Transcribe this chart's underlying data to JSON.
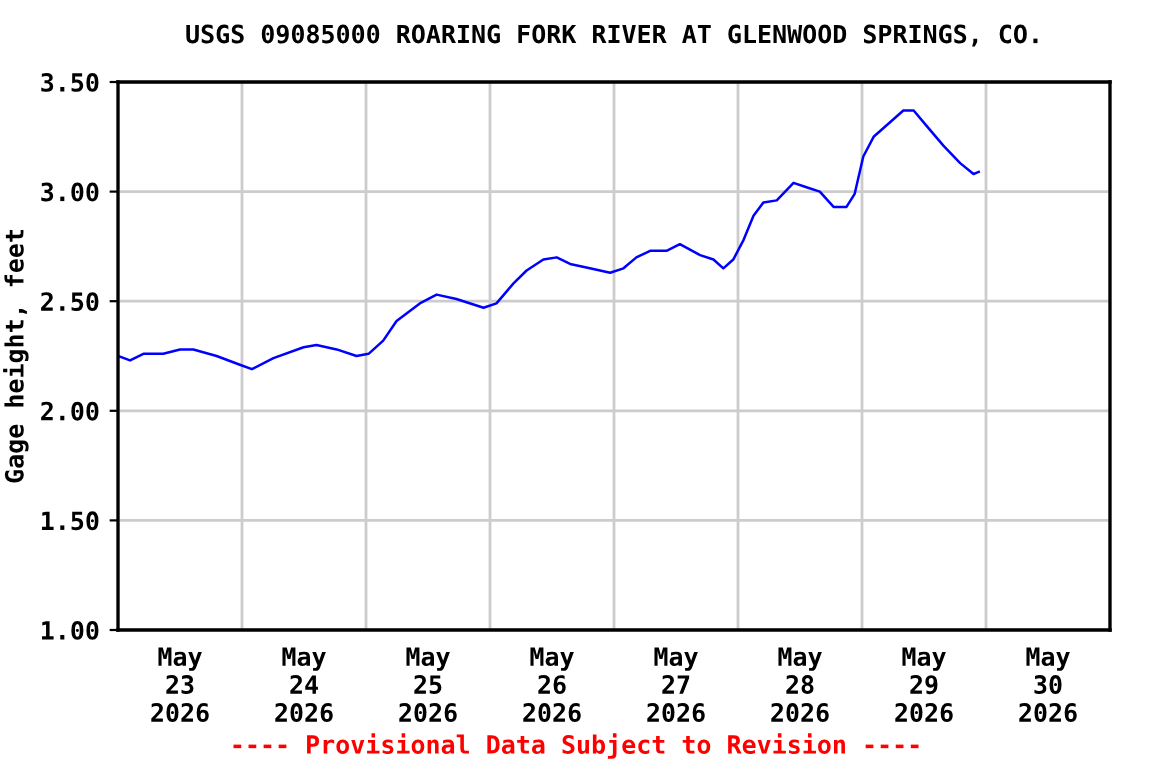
{
  "chart_data": {
    "type": "line",
    "title": "USGS 09085000 ROARING FORK RIVER AT GLENWOOD SPRINGS, CO.",
    "ylabel": "Gage height, feet",
    "annotations": [
      "---- Provisional Data Subject to Revision ----"
    ],
    "series": [
      {
        "color": "#0000ff",
        "x": [
          "2026-05-23T00:00",
          "2026-05-23T02:20",
          "2026-05-23T04:55",
          "2026-05-23T08:45",
          "2026-05-23T12:00",
          "2026-05-23T14:35",
          "2026-05-23T19:05",
          "2026-05-23T23:35",
          "2026-05-24T01:55",
          "2026-05-24T06:05",
          "2026-05-24T11:55",
          "2026-05-24T14:25",
          "2026-05-24T18:20",
          "2026-05-24T22:10",
          "2026-05-25T00:30",
          "2026-05-25T03:20",
          "2026-05-25T05:55",
          "2026-05-25T10:25",
          "2026-05-25T13:40",
          "2026-05-25T17:30",
          "2026-05-25T22:45",
          "2026-05-26T01:15",
          "2026-05-26T04:30",
          "2026-05-26T07:05",
          "2026-05-26T10:20",
          "2026-05-26T12:55",
          "2026-05-26T15:30",
          "2026-05-26T19:20",
          "2026-05-26T23:15",
          "2026-05-27T01:50",
          "2026-05-27T04:20",
          "2026-05-27T07:00",
          "2026-05-27T10:10",
          "2026-05-27T12:45",
          "2026-05-27T16:40",
          "2026-05-27T19:15",
          "2026-05-27T21:10",
          "2026-05-27T23:05",
          "2026-05-28T01:05",
          "2026-05-28T03:00",
          "2026-05-28T04:55",
          "2026-05-28T07:30",
          "2026-05-28T10:45",
          "2026-05-28T13:15",
          "2026-05-28T15:50",
          "2026-05-28T18:30",
          "2026-05-28T21:00",
          "2026-05-28T22:35",
          "2026-05-29T00:15",
          "2026-05-29T02:15",
          "2026-05-29T06:05",
          "2026-05-29T08:00",
          "2026-05-29T10:00",
          "2026-05-29T12:30",
          "2026-05-29T15:45",
          "2026-05-29T19:00",
          "2026-05-29T21:35",
          "2026-05-29T22:35"
        ],
        "values": [
          2.25,
          2.23,
          2.26,
          2.26,
          2.28,
          2.28,
          2.25,
          2.21,
          2.19,
          2.24,
          2.29,
          2.3,
          2.28,
          2.25,
          2.26,
          2.32,
          2.41,
          2.49,
          2.53,
          2.51,
          2.47,
          2.49,
          2.58,
          2.64,
          2.69,
          2.7,
          2.67,
          2.65,
          2.63,
          2.65,
          2.7,
          2.73,
          2.73,
          2.76,
          2.71,
          2.69,
          2.65,
          2.69,
          2.78,
          2.89,
          2.95,
          2.96,
          3.04,
          3.02,
          3.0,
          2.93,
          2.93,
          2.99,
          3.16,
          3.25,
          3.33,
          3.37,
          3.37,
          3.3,
          3.21,
          3.13,
          3.08,
          3.09
        ]
      }
    ],
    "xlim": [
      "2026-05-23T00:00",
      "2026-05-31T00:00"
    ],
    "xticks": [
      {
        "value": "2026-05-23T00:00",
        "label": null
      },
      {
        "value": "2026-05-23T12:00",
        "label": "May\n23\n2026"
      },
      {
        "value": "2026-05-24T00:00",
        "label": null
      },
      {
        "value": "2026-05-24T12:00",
        "label": "May\n24\n2026"
      },
      {
        "value": "2026-05-25T00:00",
        "label": null
      },
      {
        "value": "2026-05-25T12:00",
        "label": "May\n25\n2026"
      },
      {
        "value": "2026-05-26T00:00",
        "label": null
      },
      {
        "value": "2026-05-26T12:00",
        "label": "May\n26\n2026"
      },
      {
        "value": "2026-05-27T00:00",
        "label": null
      },
      {
        "value": "2026-05-27T12:00",
        "label": "May\n27\n2026"
      },
      {
        "value": "2026-05-28T00:00",
        "label": null
      },
      {
        "value": "2026-05-28T12:00",
        "label": "May\n28\n2026"
      },
      {
        "value": "2026-05-29T00:00",
        "label": null
      },
      {
        "value": "2026-05-29T12:00",
        "label": "May\n29\n2026"
      },
      {
        "value": "2026-05-30T00:00",
        "label": null
      },
      {
        "value": "2026-05-30T12:00",
        "label": "May\n30\n2026"
      },
      {
        "value": "2026-05-31T00:00",
        "label": null
      }
    ],
    "ylim": [
      1.0,
      3.5
    ],
    "yticks": [
      {
        "value": 1.0,
        "label": "1.00"
      },
      {
        "value": 1.5,
        "label": "1.50"
      },
      {
        "value": 2.0,
        "label": "2.00"
      },
      {
        "value": 2.5,
        "label": "2.50"
      },
      {
        "value": 3.0,
        "label": "3.00"
      },
      {
        "value": 3.5,
        "label": "3.50"
      }
    ],
    "grid": true,
    "marker": "none",
    "line_style": "solid"
  }
}
